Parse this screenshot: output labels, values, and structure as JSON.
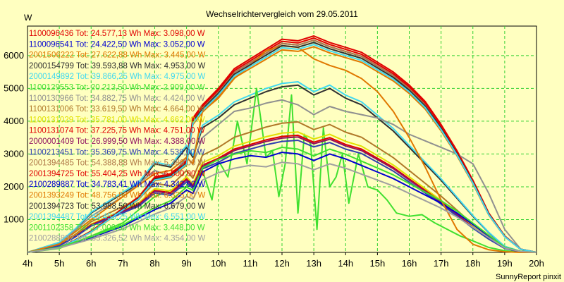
{
  "chart_data": {
    "type": "line",
    "title": "Wechselrichtervergleich vom 29.05.2011",
    "ylabel": "W",
    "xlabel": "",
    "footer": "SunnyReport pinxit",
    "x_range": [
      4,
      20
    ],
    "ylim": [
      0,
      6900
    ],
    "grid": true,
    "legend_placement": "top-left",
    "x_ticks": [
      "4h",
      "5h",
      "6h",
      "7h",
      "8h",
      "9h",
      "10h",
      "11h",
      "12h",
      "13h",
      "14h",
      "15h",
      "16h",
      "17h",
      "18h",
      "19h",
      "20h"
    ],
    "y_ticks": [
      "1000",
      "2000",
      "3000",
      "4000",
      "5000",
      "6000"
    ],
    "series": [
      {
        "name": "1100096436 Tot: 24.577,13 Wh Max: 3.098,00 W",
        "color": "#e00000",
        "shape": "big",
        "scale": 1.0
      },
      {
        "name": "1100096541 Tot: 24.422,50 Wh Max: 3.052,00 W",
        "color": "#0000d0",
        "shape": "big",
        "scale": 0.98
      },
      {
        "name": "2001506222 Tot: 27.622,88 Wh Max: 3.445,00 W",
        "color": "#e07800",
        "shape": "big",
        "scale": 0.95
      },
      {
        "name": "2000154799 Tot: 39.593,88 Wh Max: 4.953,00 W",
        "color": "#303030",
        "shape": "mid",
        "scale": 1.0
      },
      {
        "name": "2000149892 Tot: 39.866,25 Wh Max: 4.975,00 W",
        "color": "#40d8f0",
        "shape": "mid",
        "scale": 1.02
      },
      {
        "name": "1100129553 Tot: 20.213,50 Wh Max: 2.909,00 W",
        "color": "#40e030",
        "shape": "spiky",
        "scale": 1.0
      },
      {
        "name": "1100130966 Tot: 34.882,75 Wh Max: 4.424,00 W",
        "color": "#909090",
        "shape": "late",
        "scale": 1.0
      },
      {
        "name": "1100131006 Tot: 33.619,50 Wh Max: 4.664,00 W",
        "color": "#b07828",
        "shape": "mid",
        "scale": 0.78
      },
      {
        "name": "1100131029 Tot: 35.781,00 Wh Max: 4.662,00 W",
        "color": "#e0e000",
        "shape": "mid",
        "scale": 0.72
      },
      {
        "name": "1100131074 Tot: 37.225,75 Wh Max: 4.751,00 W",
        "color": "#e00000",
        "shape": "mid",
        "scale": 0.7
      },
      {
        "name": "2000001409 Tot: 26.999,50 Wh Max: 4.388,00 W",
        "color": "#901060",
        "shape": "mid",
        "scale": 0.69
      },
      {
        "name": "1100213451 Tot: 35.369,75 Wh Max: 4.538,00 W",
        "color": "#3040b0",
        "shape": "mid",
        "scale": 0.67
      },
      {
        "name": "2001394485 Tot: 54.388,88 Wh Max: 5.380,00 W",
        "color": "#b07848",
        "shape": "big",
        "scale": 0.98
      },
      {
        "name": "2001394725 Tot: 55.404,25 Wh Max: 6.500,00 W",
        "color": "#e00000",
        "shape": "big",
        "scale": 0.99
      },
      {
        "name": "2100289887 Tot: 34.783,41 Wh Max: 4.342,00 W",
        "color": "#0000d0",
        "shape": "low",
        "scale": 1.0
      },
      {
        "name": "2001393249 Tot: 48.756,88 Wh Max: 6.325,00 W",
        "color": "#e07800",
        "shape": "early",
        "scale": 1.0
      },
      {
        "name": "2001394723 Tot: 53.988,50 Wh Max: 6.679,00 W",
        "color": "#303030",
        "shape": "big",
        "scale": 0.97
      },
      {
        "name": "2001394487 Tot: 48.453,25 Wh Max: 6.551,00 W",
        "color": "#40d8f0",
        "shape": "big",
        "scale": 0.96
      },
      {
        "name": "2001102358 Tot: 27.000,00 Wh Max: 3.448,00 W",
        "color": "#40e030",
        "shape": "low",
        "scale": 1.05
      },
      {
        "name": "2100288832 Tot: 35.326,52 Wh Max: 4.354,00 W",
        "color": "#a0a0a0",
        "shape": "low",
        "scale": 0.9
      }
    ],
    "shapes": {
      "big": {
        "x": [
          4,
          5,
          5.5,
          6,
          6.5,
          7,
          7.5,
          8,
          8.5,
          9,
          9.2,
          9.5,
          10,
          10.5,
          11,
          11.5,
          12,
          12.5,
          13,
          13.5,
          14,
          14.5,
          15,
          15.5,
          16,
          16.5,
          17,
          17.5,
          18,
          18.5,
          19,
          19.5,
          20
        ],
        "y": [
          0,
          150,
          380,
          650,
          1000,
          1350,
          1700,
          2300,
          2400,
          2800,
          4100,
          4500,
          5000,
          5600,
          5900,
          6200,
          6500,
          6450,
          6600,
          6400,
          6250,
          6100,
          5800,
          5500,
          5100,
          4600,
          3900,
          3100,
          2200,
          1200,
          500,
          100,
          0
        ]
      },
      "mid": {
        "x": [
          4,
          5,
          5.5,
          6,
          6.5,
          7,
          7.5,
          8,
          8.5,
          9,
          9.2,
          9.5,
          10,
          10.5,
          11,
          11.5,
          12,
          12.5,
          13,
          13.5,
          14,
          14.5,
          15,
          15.5,
          16,
          16.5,
          17,
          17.5,
          18,
          18.5,
          19,
          19.5,
          20
        ],
        "y": [
          0,
          300,
          700,
          1200,
          1500,
          1800,
          2100,
          2700,
          2600,
          3200,
          2900,
          3800,
          4100,
          4500,
          4700,
          4900,
          5050,
          5100,
          4800,
          5000,
          4700,
          4500,
          4100,
          3700,
          3200,
          2700,
          2200,
          1650,
          1100,
          600,
          180,
          30,
          0
        ]
      },
      "late": {
        "x": [
          4,
          5,
          6,
          7,
          8,
          8.5,
          9,
          9.2,
          9.5,
          10,
          10.5,
          11,
          11.5,
          12,
          12.5,
          13,
          13.5,
          14,
          14.5,
          15,
          15.5,
          16,
          16.5,
          17,
          17.5,
          18,
          18.5,
          19,
          19.5,
          20
        ],
        "y": [
          0,
          250,
          1100,
          1700,
          2500,
          2300,
          2900,
          2700,
          3500,
          3900,
          4300,
          4400,
          4550,
          4650,
          4500,
          4200,
          4450,
          4300,
          4200,
          4100,
          3900,
          3600,
          3400,
          3200,
          3000,
          2700,
          1800,
          700,
          100,
          0
        ]
      },
      "low": {
        "x": [
          4,
          5,
          6,
          7,
          8,
          8.5,
          9,
          9.2,
          9.5,
          10,
          10.5,
          11,
          11.5,
          12,
          12.5,
          13,
          13.5,
          14,
          14.5,
          15,
          15.5,
          16,
          16.5,
          17,
          17.5,
          18,
          18.5,
          19,
          19.5,
          20
        ],
        "y": [
          0,
          150,
          450,
          800,
          1300,
          1500,
          1900,
          1800,
          2450,
          2700,
          2850,
          2950,
          2900,
          3050,
          3000,
          2800,
          3000,
          2850,
          2650,
          2450,
          2250,
          2000,
          1750,
          1500,
          1200,
          850,
          500,
          150,
          30,
          0
        ]
      },
      "early": {
        "x": [
          4,
          5,
          6,
          7,
          8,
          8.5,
          9,
          9.2,
          9.5,
          10,
          10.5,
          11,
          11.5,
          12,
          12.5,
          13,
          13.5,
          14,
          14.5,
          15,
          15.5,
          16,
          16.5,
          17,
          17.5,
          18,
          18.5,
          19,
          19.5,
          20
        ],
        "y": [
          0,
          250,
          1000,
          1700,
          2400,
          2500,
          2900,
          2700,
          4300,
          4700,
          5300,
          5700,
          6150,
          6300,
          6250,
          5900,
          5700,
          5550,
          5300,
          4900,
          4300,
          3500,
          2600,
          1600,
          700,
          250,
          80,
          20,
          0,
          0
        ]
      },
      "spiky": {
        "x": [
          4,
          5,
          6,
          7,
          8,
          8.5,
          9,
          9.2,
          9.5,
          9.8,
          10,
          10.3,
          10.6,
          10.9,
          11.2,
          11.5,
          11.7,
          11.9,
          12.1,
          12.3,
          12.5,
          12.7,
          12.9,
          13.1,
          13.3,
          13.5,
          13.7,
          13.9,
          14.1,
          14.4,
          14.7,
          15,
          15.3,
          15.6,
          16,
          16.4,
          16.8,
          17.2,
          17.6,
          18,
          18.5,
          19,
          19.5,
          20
        ],
        "y": [
          0,
          120,
          500,
          900,
          1700,
          1900,
          2000,
          2100,
          2500,
          1600,
          2800,
          2300,
          4000,
          2700,
          5000,
          2900,
          3100,
          1700,
          2700,
          4800,
          1200,
          3600,
          3300,
          700,
          3800,
          2000,
          2300,
          3000,
          1500,
          3000,
          2000,
          1900,
          1600,
          1200,
          1100,
          1150,
          900,
          700,
          500,
          350,
          150,
          50,
          10,
          0
        ]
      }
    }
  }
}
